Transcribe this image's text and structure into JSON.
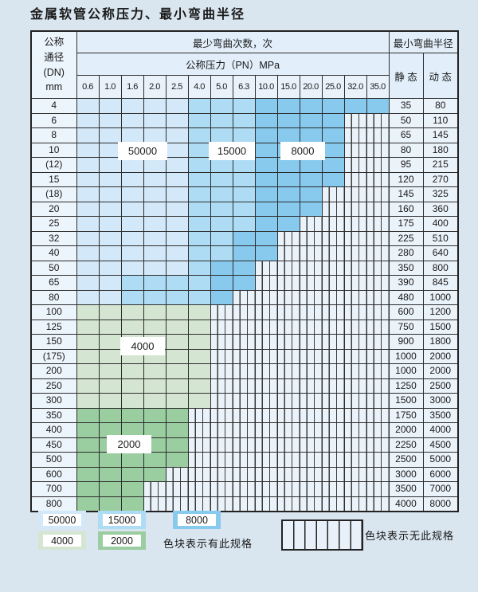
{
  "title": "金属软管公称压力、最小弯曲半径",
  "table": {
    "header": {
      "dn_label": "公称\n通径\n(DN)\nmm",
      "bend_cycles": "最少弯曲次数，次",
      "pressure": "公称压力（PN）MPa",
      "radius": "最小弯曲半径",
      "static_label": "静 态",
      "dynamic_label": "动 态"
    },
    "pressure_columns": [
      "0.6",
      "1.0",
      "1.6",
      "2.0",
      "2.5",
      "4.0",
      "5.0",
      "6.3",
      "10.0",
      "15.0",
      "20.0",
      "25.0",
      "32.0",
      "35.0"
    ],
    "zone_legend_note": "cells: L=50000 cycles, M=15000 cycles, D=8000 cycles, F=4000 cycles, G=2000 cycles, X=not available",
    "rows": [
      {
        "dn": "4",
        "cells": "LLLLLMMMDDDDDD",
        "static": "35",
        "dynamic": "80"
      },
      {
        "dn": "6",
        "cells": "LLLLLMMMDDDDXX",
        "static": "50",
        "dynamic": "110"
      },
      {
        "dn": "8",
        "cells": "LLLLLMMMDDDDXX",
        "static": "65",
        "dynamic": "145"
      },
      {
        "dn": "10",
        "cells": "LLLLLMMMDDDDXX",
        "static": "80",
        "dynamic": "180"
      },
      {
        "dn": "(12)",
        "cells": "LLLLLMMMDDDDXX",
        "static": "95",
        "dynamic": "215"
      },
      {
        "dn": "15",
        "cells": "LLLLLMMMDDDDXX",
        "static": "120",
        "dynamic": "270"
      },
      {
        "dn": "(18)",
        "cells": "LLLLLMMMDDDXXX",
        "static": "145",
        "dynamic": "325"
      },
      {
        "dn": "20",
        "cells": "LLLLLMMMDDDXXX",
        "static": "160",
        "dynamic": "360"
      },
      {
        "dn": "25",
        "cells": "LLLLLMMMDDXXXX",
        "static": "175",
        "dynamic": "400"
      },
      {
        "dn": "32",
        "cells": "LLLLLMMDDXXXXX",
        "static": "225",
        "dynamic": "510"
      },
      {
        "dn": "40",
        "cells": "LLLLLMMDDXXXXX",
        "static": "280",
        "dynamic": "640"
      },
      {
        "dn": "50",
        "cells": "LLLLLMDDXXXXXX",
        "static": "350",
        "dynamic": "800"
      },
      {
        "dn": "65",
        "cells": "LLMMMMDDXXXXXX",
        "static": "390",
        "dynamic": "845"
      },
      {
        "dn": "80",
        "cells": "LLMMMMDXXXXXXX",
        "static": "480",
        "dynamic": "1000"
      },
      {
        "dn": "100",
        "cells": "FFFFFFXXXXXXXX",
        "static": "600",
        "dynamic": "1200"
      },
      {
        "dn": "125",
        "cells": "FFFFFFXXXXXXXX",
        "static": "750",
        "dynamic": "1500"
      },
      {
        "dn": "150",
        "cells": "FFFFFFXXXXXXXX",
        "static": "900",
        "dynamic": "1800"
      },
      {
        "dn": "(175)",
        "cells": "FFFFFFXXXXXXXX",
        "static": "1000",
        "dynamic": "2000"
      },
      {
        "dn": "200",
        "cells": "FFFFFFXXXXXXXX",
        "static": "1000",
        "dynamic": "2000"
      },
      {
        "dn": "250",
        "cells": "FFFFFFXXXXXXXX",
        "static": "1250",
        "dynamic": "2500"
      },
      {
        "dn": "300",
        "cells": "FFFFFFXXXXXXXX",
        "static": "1500",
        "dynamic": "3000"
      },
      {
        "dn": "350",
        "cells": "GGGGGXXXXXXXXX",
        "static": "1750",
        "dynamic": "3500"
      },
      {
        "dn": "400",
        "cells": "GGGGGXXXXXXXXX",
        "static": "2000",
        "dynamic": "4000"
      },
      {
        "dn": "450",
        "cells": "GGGGGXXXXXXXXX",
        "static": "2250",
        "dynamic": "4500"
      },
      {
        "dn": "500",
        "cells": "GGGGGXXXXXXXXX",
        "static": "2500",
        "dynamic": "5000"
      },
      {
        "dn": "600",
        "cells": "GGGGXXXXXXXXXX",
        "static": "3000",
        "dynamic": "6000"
      },
      {
        "dn": "700",
        "cells": "GGGXXXXXXXXXXX",
        "static": "3500",
        "dynamic": "7000"
      },
      {
        "dn": "800",
        "cells": "GGGXXXXXXXXXXX",
        "static": "4000",
        "dynamic": "8000"
      }
    ]
  },
  "cycle_labels": {
    "c50000": "50000",
    "c15000": "15000",
    "c8000": "8000",
    "c4000": "4000",
    "c2000": "2000"
  },
  "legend": {
    "has_spec": "色块表示有此规格",
    "no_spec": "色块表示无此规格"
  },
  "colors": {
    "page_bg": "#d9e5ef",
    "grid_line": "#2d2d2d",
    "zones": {
      "L": "#d3e8f8",
      "M": "#aedcf4",
      "D": "#87caee",
      "F": "#d4e6d1",
      "G": "#9acd9f"
    },
    "hatch_bg": "#eaf2fa",
    "header_bg": "#e2eef9",
    "label_col_bg": "#ecf4fc"
  }
}
